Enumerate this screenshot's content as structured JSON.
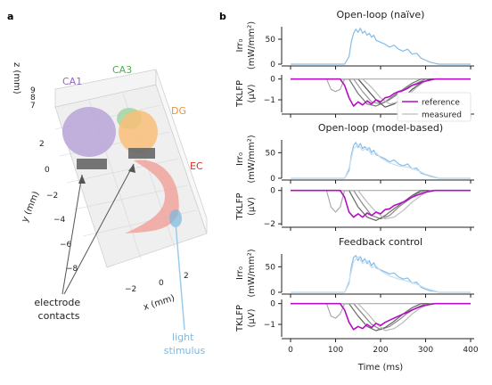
{
  "panel_labels": {
    "a": "a",
    "b": "b"
  },
  "brain_panel": {
    "regions": [
      {
        "name": "CA1",
        "color": "#8e6bb8"
      },
      {
        "name": "CA3",
        "color": "#4bb04f"
      },
      {
        "name": "DG",
        "color": "#f0922e"
      },
      {
        "name": "EC",
        "color": "#d9342b"
      }
    ],
    "axis_x": {
      "label": "x (mm)",
      "ticks": [
        "−2",
        "0",
        "2"
      ]
    },
    "axis_y": {
      "label": "y (mm)",
      "ticks": [
        "2",
        "0",
        "−2",
        "−4",
        "−6",
        "−8"
      ]
    },
    "axis_z": {
      "label": "z (mm)",
      "ticks": [
        "9",
        "8",
        "7"
      ]
    },
    "annotation_contacts": "electrode\ncontacts",
    "annotation_light": "light\nstimulus",
    "colors": {
      "contacts": "#555555",
      "light": "#7ab8e0"
    }
  },
  "chart_data": [
    {
      "type": "line",
      "title": "Open-loop (naïve)",
      "xlabel": "",
      "ylabel": [
        "Irr₀",
        "(mW/mm²)"
      ],
      "xlim": [
        0,
        400
      ],
      "ylim": [
        0,
        75
      ],
      "yticks": [
        "0",
        "50"
      ],
      "series": [
        {
          "color": "#86bde6",
          "x": [
            0,
            100,
            120,
            130,
            135,
            140,
            145,
            150,
            155,
            160,
            165,
            170,
            175,
            180,
            185,
            190,
            200,
            210,
            220,
            230,
            240,
            250,
            260,
            270,
            280,
            290,
            300,
            310,
            320,
            330,
            400
          ],
          "values": [
            0,
            0,
            0,
            15,
            45,
            62,
            70,
            64,
            72,
            62,
            66,
            58,
            62,
            54,
            58,
            48,
            44,
            40,
            34,
            38,
            30,
            26,
            30,
            20,
            22,
            12,
            8,
            4,
            2,
            0,
            0
          ]
        }
      ]
    },
    {
      "type": "line",
      "title": "",
      "xlabel": "",
      "ylabel": [
        "TKLFP",
        "(μV)"
      ],
      "xlim": [
        0,
        400
      ],
      "ylim": [
        -1.6,
        0.2
      ],
      "yticks": [
        "0",
        "−1"
      ],
      "legend": {
        "position": "right",
        "entries": [
          {
            "label": "reference",
            "color": "#b40fc0"
          },
          {
            "label": "measured",
            "color": "#c8c8c8"
          }
        ]
      },
      "series": [
        {
          "name": "reference",
          "color": "#b40fc0",
          "x": [
            0,
            110,
            120,
            130,
            140,
            150,
            160,
            170,
            180,
            190,
            200,
            210,
            220,
            230,
            240,
            250,
            260,
            270,
            280,
            290,
            300,
            310,
            320,
            400
          ],
          "values": [
            0,
            0,
            -0.3,
            -0.9,
            -1.3,
            -1.1,
            -1.25,
            -1.05,
            -1.2,
            -1.0,
            -1.1,
            -0.9,
            -0.85,
            -0.7,
            -0.6,
            -0.55,
            -0.45,
            -0.3,
            -0.25,
            -0.15,
            -0.1,
            -0.05,
            0,
            0
          ]
        },
        {
          "color": "#aaaaaa",
          "x": [
            0,
            80,
            90,
            100,
            110,
            120,
            400
          ],
          "values": [
            0,
            0,
            -0.5,
            -0.6,
            -0.5,
            0,
            0
          ]
        },
        {
          "color": "#999999",
          "x": [
            0,
            140,
            160,
            180,
            200,
            220,
            240,
            260,
            280,
            300,
            400
          ],
          "values": [
            0,
            0,
            -0.6,
            -1.1,
            -1.2,
            -1.0,
            -0.7,
            -0.4,
            -0.2,
            0,
            0
          ]
        },
        {
          "color": "#777777",
          "x": [
            0,
            130,
            150,
            170,
            190,
            210,
            230,
            250,
            270,
            290,
            400
          ],
          "values": [
            0,
            0,
            -0.7,
            -1.2,
            -1.3,
            -1.1,
            -0.8,
            -0.5,
            -0.2,
            0,
            0
          ]
        },
        {
          "color": "#555555",
          "x": [
            0,
            150,
            170,
            190,
            210,
            230,
            250,
            270,
            290,
            310,
            400
          ],
          "values": [
            0,
            0,
            -0.5,
            -1.0,
            -1.35,
            -1.2,
            -0.9,
            -0.5,
            -0.2,
            0,
            0
          ]
        },
        {
          "color": "#bbbbbb",
          "x": [
            0,
            160,
            180,
            200,
            220,
            240,
            260,
            280,
            300,
            320,
            400
          ],
          "values": [
            0,
            0,
            -0.4,
            -0.9,
            -1.2,
            -1.1,
            -0.8,
            -0.4,
            -0.1,
            0,
            0
          ]
        }
      ]
    },
    {
      "type": "line",
      "title": "Open-loop (model-based)",
      "xlabel": "",
      "ylabel": [
        "Irr₀",
        "(mW/mm²)"
      ],
      "xlim": [
        0,
        400
      ],
      "ylim": [
        0,
        75
      ],
      "yticks": [
        "0",
        "50"
      ],
      "series": [
        {
          "color": "#86bde6",
          "x": [
            0,
            100,
            120,
            130,
            135,
            140,
            145,
            150,
            155,
            160,
            165,
            170,
            175,
            180,
            185,
            190,
            200,
            210,
            220,
            230,
            240,
            250,
            260,
            270,
            280,
            290,
            300,
            310,
            320,
            330,
            400
          ],
          "values": [
            0,
            0,
            0,
            15,
            45,
            64,
            70,
            60,
            68,
            58,
            62,
            55,
            60,
            50,
            55,
            46,
            42,
            38,
            32,
            36,
            28,
            24,
            28,
            18,
            20,
            10,
            7,
            4,
            2,
            0,
            0
          ]
        },
        {
          "color": "#c6def2",
          "x": [
            0,
            100,
            120,
            130,
            140,
            150,
            160,
            170,
            180,
            190,
            200,
            220,
            240,
            260,
            280,
            300,
            320,
            330,
            400
          ],
          "values": [
            0,
            0,
            0,
            20,
            58,
            66,
            54,
            60,
            46,
            50,
            40,
            30,
            24,
            22,
            16,
            8,
            3,
            0,
            0
          ]
        }
      ]
    },
    {
      "type": "line",
      "title": "",
      "xlabel": "",
      "ylabel": [
        "TKLFP",
        "(μV)"
      ],
      "xlim": [
        0,
        400
      ],
      "ylim": [
        -2.1,
        0.2
      ],
      "yticks": [
        "0",
        "−2"
      ],
      "series": [
        {
          "name": "reference",
          "color": "#b40fc0",
          "x": [
            0,
            110,
            120,
            130,
            140,
            150,
            160,
            170,
            180,
            190,
            200,
            210,
            220,
            230,
            240,
            250,
            260,
            270,
            280,
            290,
            300,
            310,
            320,
            400
          ],
          "values": [
            0,
            0,
            -0.4,
            -1.3,
            -1.6,
            -1.4,
            -1.6,
            -1.35,
            -1.5,
            -1.3,
            -1.4,
            -1.15,
            -1.1,
            -0.9,
            -0.8,
            -0.7,
            -0.55,
            -0.4,
            -0.3,
            -0.2,
            -0.1,
            -0.05,
            0,
            0
          ]
        },
        {
          "color": "#aaaaaa",
          "x": [
            0,
            80,
            90,
            100,
            110,
            120,
            400
          ],
          "values": [
            0,
            0,
            -1.0,
            -1.3,
            -1.0,
            0,
            0
          ]
        },
        {
          "color": "#888888",
          "x": [
            0,
            140,
            160,
            180,
            200,
            220,
            240,
            260,
            280,
            300,
            400
          ],
          "values": [
            0,
            0,
            -0.8,
            -1.5,
            -1.7,
            -1.5,
            -1.0,
            -0.6,
            -0.2,
            0,
            0
          ]
        },
        {
          "color": "#666666",
          "x": [
            0,
            130,
            150,
            170,
            190,
            210,
            230,
            250,
            270,
            290,
            400
          ],
          "values": [
            0,
            0,
            -1.0,
            -1.6,
            -1.8,
            -1.5,
            -1.1,
            -0.7,
            -0.3,
            0,
            0
          ]
        },
        {
          "color": "#bbbbbb",
          "x": [
            0,
            150,
            170,
            190,
            210,
            230,
            250,
            270,
            290,
            310,
            400
          ],
          "values": [
            0,
            0,
            -0.7,
            -1.3,
            -1.7,
            -1.6,
            -1.2,
            -0.7,
            -0.3,
            0,
            0
          ]
        }
      ]
    },
    {
      "type": "line",
      "title": "Feedback control",
      "xlabel": "",
      "ylabel": [
        "Irr₀",
        "(mW/mm²)"
      ],
      "xlim": [
        0,
        400
      ],
      "ylim": [
        0,
        75
      ],
      "yticks": [
        "0",
        "50"
      ],
      "series": [
        {
          "color": "#86bde6",
          "x": [
            0,
            100,
            120,
            130,
            135,
            140,
            145,
            150,
            155,
            160,
            165,
            170,
            175,
            180,
            185,
            190,
            200,
            210,
            220,
            230,
            240,
            250,
            260,
            270,
            280,
            290,
            300,
            310,
            320,
            330,
            400
          ],
          "values": [
            0,
            0,
            0,
            18,
            50,
            68,
            72,
            62,
            70,
            60,
            66,
            56,
            62,
            52,
            58,
            48,
            44,
            40,
            36,
            38,
            30,
            26,
            28,
            18,
            20,
            10,
            6,
            3,
            2,
            0,
            0
          ]
        },
        {
          "color": "#c6def2",
          "x": [
            0,
            100,
            120,
            130,
            140,
            150,
            160,
            170,
            180,
            190,
            200,
            220,
            240,
            260,
            280,
            300,
            320,
            330,
            400
          ],
          "values": [
            0,
            0,
            0,
            22,
            60,
            70,
            56,
            62,
            48,
            52,
            42,
            32,
            26,
            22,
            16,
            8,
            3,
            0,
            0
          ]
        }
      ]
    },
    {
      "type": "line",
      "title": "",
      "xlabel": "Time (ms)",
      "ylabel": [
        "TKLFP",
        "(μV)"
      ],
      "xlim": [
        0,
        400
      ],
      "ylim": [
        -1.6,
        0.2
      ],
      "yticks": [
        "0",
        "−1"
      ],
      "xticks": [
        "0",
        "100",
        "200",
        "300",
        "400"
      ],
      "series": [
        {
          "name": "reference",
          "color": "#b40fc0",
          "x": [
            0,
            110,
            120,
            130,
            140,
            150,
            160,
            170,
            180,
            190,
            200,
            210,
            220,
            230,
            240,
            250,
            260,
            270,
            280,
            290,
            300,
            310,
            320,
            400
          ],
          "values": [
            0,
            0,
            -0.3,
            -0.9,
            -1.25,
            -1.1,
            -1.2,
            -1.0,
            -1.15,
            -0.95,
            -1.05,
            -0.9,
            -0.8,
            -0.7,
            -0.6,
            -0.5,
            -0.42,
            -0.3,
            -0.22,
            -0.14,
            -0.08,
            -0.04,
            0,
            0
          ]
        },
        {
          "color": "#aaaaaa",
          "x": [
            0,
            80,
            90,
            100,
            110,
            120,
            400
          ],
          "values": [
            0,
            0,
            -0.6,
            -0.7,
            -0.5,
            0,
            0
          ]
        },
        {
          "color": "#888888",
          "x": [
            0,
            140,
            160,
            180,
            200,
            220,
            240,
            260,
            280,
            300,
            400
          ],
          "values": [
            0,
            0,
            -0.5,
            -1.0,
            -1.25,
            -1.1,
            -0.8,
            -0.45,
            -0.2,
            0,
            0
          ]
        },
        {
          "color": "#666666",
          "x": [
            0,
            130,
            150,
            170,
            190,
            210,
            230,
            250,
            270,
            290,
            400
          ],
          "values": [
            0,
            0,
            -0.6,
            -1.1,
            -1.3,
            -1.15,
            -0.85,
            -0.5,
            -0.2,
            0,
            0
          ]
        },
        {
          "color": "#bbbbbb",
          "x": [
            0,
            150,
            170,
            190,
            210,
            230,
            250,
            270,
            290,
            310,
            400
          ],
          "values": [
            0,
            0,
            -0.45,
            -0.95,
            -1.3,
            -1.2,
            -0.9,
            -0.5,
            -0.2,
            0,
            0
          ]
        }
      ]
    }
  ]
}
